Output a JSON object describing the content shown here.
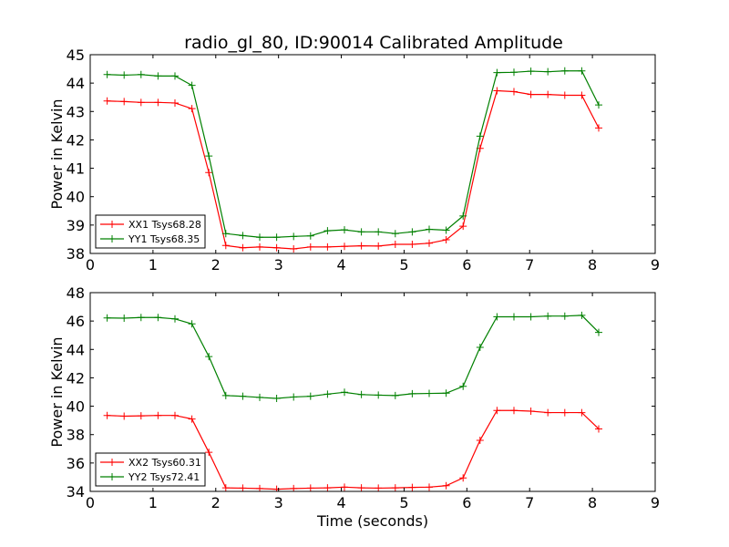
{
  "chart_data": [
    {
      "type": "line",
      "title": "radio_gl_80, ID:90014 Calibrated Amplitude",
      "xlabel": "",
      "ylabel": "Power in Kelvin",
      "xlim": [
        0,
        9
      ],
      "ylim": [
        38,
        45
      ],
      "xticks": [
        0,
        1,
        2,
        3,
        4,
        5,
        6,
        7,
        8,
        9
      ],
      "yticks": [
        38,
        39,
        40,
        41,
        42,
        43,
        44,
        45
      ],
      "legend": "lower-left",
      "x": [
        0.27,
        0.54,
        0.81,
        1.08,
        1.35,
        1.62,
        1.89,
        2.16,
        2.43,
        2.7,
        2.97,
        3.24,
        3.51,
        3.78,
        4.05,
        4.32,
        4.59,
        4.86,
        5.13,
        5.4,
        5.67,
        5.94,
        6.21,
        6.48,
        6.75,
        7.02,
        7.29,
        7.56,
        7.83,
        8.1
      ],
      "series": [
        {
          "name": "XX1 Tsys68.28",
          "color": "#ff0000",
          "values": [
            43.37,
            43.35,
            43.32,
            43.32,
            43.3,
            43.1,
            40.85,
            38.28,
            38.2,
            38.23,
            38.2,
            38.16,
            38.23,
            38.23,
            38.25,
            38.27,
            38.26,
            38.32,
            38.32,
            38.36,
            38.48,
            38.96,
            41.7,
            43.73,
            43.7,
            43.6,
            43.6,
            43.57,
            43.57,
            42.42
          ]
        },
        {
          "name": "YY1 Tsys68.35",
          "color": "#008000",
          "values": [
            44.3,
            44.28,
            44.3,
            44.25,
            44.25,
            43.92,
            41.43,
            38.7,
            38.63,
            38.57,
            38.57,
            38.6,
            38.62,
            38.8,
            38.83,
            38.76,
            38.76,
            38.7,
            38.76,
            38.85,
            38.82,
            39.32,
            42.13,
            44.37,
            44.38,
            44.42,
            44.4,
            44.43,
            44.43,
            43.23
          ]
        }
      ]
    },
    {
      "type": "line",
      "title": "",
      "xlabel": "Time (seconds)",
      "ylabel": "Power in Kelvin",
      "xlim": [
        0,
        9
      ],
      "ylim": [
        34,
        48
      ],
      "xticks": [
        0,
        1,
        2,
        3,
        4,
        5,
        6,
        7,
        8,
        9
      ],
      "yticks": [
        34,
        36,
        38,
        40,
        42,
        44,
        46,
        48
      ],
      "legend": "lower-left",
      "x": [
        0.27,
        0.54,
        0.81,
        1.08,
        1.35,
        1.62,
        1.89,
        2.16,
        2.43,
        2.7,
        2.97,
        3.24,
        3.51,
        3.78,
        4.05,
        4.32,
        4.59,
        4.86,
        5.13,
        5.4,
        5.67,
        5.94,
        6.21,
        6.48,
        6.75,
        7.02,
        7.29,
        7.56,
        7.83,
        8.1
      ],
      "series": [
        {
          "name": "XX2 Tsys60.31",
          "color": "#ff0000",
          "values": [
            39.35,
            39.3,
            39.32,
            39.35,
            39.35,
            39.1,
            36.75,
            34.25,
            34.23,
            34.2,
            34.15,
            34.2,
            34.23,
            34.25,
            34.3,
            34.25,
            34.23,
            34.25,
            34.28,
            34.3,
            34.4,
            34.95,
            37.6,
            39.7,
            39.7,
            39.65,
            39.55,
            39.55,
            39.55,
            38.4
          ]
        },
        {
          "name": "YY2 Tsys72.41",
          "color": "#008000",
          "values": [
            46.22,
            46.2,
            46.25,
            46.25,
            46.15,
            45.8,
            43.5,
            40.75,
            40.7,
            40.62,
            40.55,
            40.65,
            40.7,
            40.85,
            40.98,
            40.82,
            40.78,
            40.75,
            40.88,
            40.9,
            40.92,
            41.4,
            44.15,
            46.3,
            46.3,
            46.3,
            46.35,
            46.35,
            46.4,
            45.2
          ]
        }
      ]
    }
  ]
}
